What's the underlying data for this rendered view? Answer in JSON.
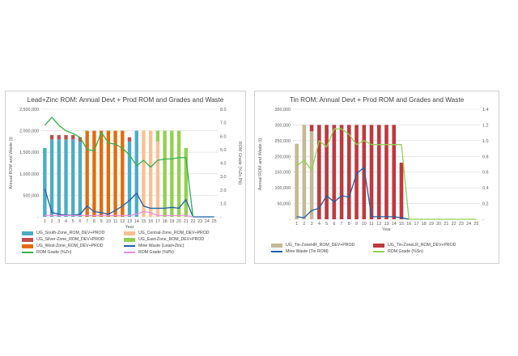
{
  "chart_data": [
    {
      "type": "bar",
      "title": "Lead+Zinc ROM: Annual Devt + Prod ROM and Grades and Waste",
      "xlabel": "Year",
      "ylabel": "Annual ROM and Waste (t)",
      "y2label": "ROM Grade (%Zn,Pb)",
      "ylim": [
        0,
        2500000
      ],
      "y2lim": [
        0,
        8
      ],
      "yticks": [
        "-",
        "500,000",
        "1,000,000",
        "1,500,000",
        "2,000,000",
        "2,500,000"
      ],
      "y2ticks": [
        "-",
        "1.0",
        "2.0",
        "3.0",
        "4.0",
        "5.0",
        "6.0",
        "7.0",
        "8.0"
      ],
      "categories": [
        "1",
        "2",
        "3",
        "4",
        "5",
        "6",
        "7",
        "8",
        "9",
        "10",
        "11",
        "12",
        "13",
        "14",
        "15",
        "16",
        "17",
        "18",
        "19",
        "20",
        "21",
        "22",
        "23",
        "24",
        "25"
      ],
      "grid": true,
      "legend_position": "bottom",
      "bar_series": [
        {
          "name": "UG_South-Zone_ROM_DEV+PROD",
          "color": "#4bacc6",
          "values": [
            1600000,
            1800000,
            1800000,
            1800000,
            1800000,
            1750000,
            0,
            0,
            0,
            0,
            0,
            0,
            1750000,
            2000000,
            0,
            0,
            0,
            0,
            0,
            0,
            0,
            0,
            0,
            0,
            0
          ]
        },
        {
          "name": "UG_Central-Zone_ROM_DEV+PROD",
          "color": "#fac090",
          "values": [
            0,
            0,
            0,
            0,
            0,
            0,
            0,
            0,
            0,
            0,
            0,
            0,
            0,
            0,
            2000000,
            2000000,
            1750000,
            0,
            0,
            0,
            0,
            0,
            0,
            0,
            0
          ]
        },
        {
          "name": "UG_Silver-Zone_ROM_DEV+PROD",
          "color": "#c0504d",
          "values": [
            0,
            100000,
            100000,
            100000,
            100000,
            100000,
            0,
            0,
            0,
            0,
            0,
            0,
            100000,
            0,
            0,
            0,
            0,
            0,
            0,
            0,
            0,
            0,
            0,
            0,
            0
          ]
        },
        {
          "name": "UG_East-Zone_ROM_DEV+PROD",
          "color": "#92d050",
          "values": [
            0,
            0,
            0,
            0,
            0,
            0,
            0,
            0,
            0,
            0,
            0,
            0,
            0,
            0,
            0,
            0,
            250000,
            2000000,
            2000000,
            2000000,
            1600000,
            0,
            0,
            0,
            0
          ]
        },
        {
          "name": "UG_West-Zone_ROM_DEV+PROD",
          "color": "#e46c0a",
          "values": [
            0,
            0,
            0,
            0,
            0,
            0,
            2000000,
            2000000,
            2000000,
            2000000,
            2000000,
            2000000,
            0,
            0,
            0,
            0,
            0,
            0,
            0,
            0,
            0,
            0,
            0,
            0,
            0
          ]
        }
      ],
      "line_series": [
        {
          "name": "Mine Waste (Lead+Zinc)",
          "color": "#1f5fa8",
          "axis": "left",
          "values": [
            650000,
            100000,
            60000,
            40000,
            40000,
            60000,
            250000,
            120000,
            100000,
            60000,
            150000,
            250000,
            380000,
            550000,
            250000,
            200000,
            200000,
            200000,
            220000,
            200000,
            400000,
            0,
            0,
            0,
            0
          ]
        },
        {
          "name": "ROM Grade (%Zn)",
          "color": "#2fb34a",
          "axis": "right",
          "values": [
            6.8,
            7.4,
            6.8,
            6.4,
            6.2,
            5.9,
            5.0,
            4.9,
            6.3,
            5.5,
            5.4,
            5.1,
            4.6,
            3.8,
            4.2,
            3.7,
            4.2,
            4.3,
            4.3,
            4.4,
            4.4,
            0,
            null,
            null,
            null
          ]
        },
        {
          "name": "ROM Grade (%Pb)",
          "color": "#f08ee0",
          "axis": "right",
          "values": [
            0.1,
            0.1,
            0.1,
            0.1,
            0.1,
            0.1,
            0.1,
            0.1,
            0.1,
            0.1,
            0.1,
            0.1,
            0.1,
            0.2,
            0.4,
            0.3,
            0.1,
            0.1,
            0.1,
            0.1,
            0.1,
            0,
            null,
            null,
            null
          ]
        }
      ]
    },
    {
      "type": "bar",
      "title": "Tin ROM: Annual Devt + Prod ROM and Grades and Waste",
      "xlabel": "Year",
      "ylabel": "Annual ROM and Waste (t)",
      "y2label": "ROM Grade (%Sn)",
      "ylim": [
        0,
        350000
      ],
      "y2lim": [
        0,
        1.4
      ],
      "yticks": [
        "-",
        "50,000",
        "100,000",
        "150,000",
        "200,000",
        "250,000",
        "300,000",
        "350,000"
      ],
      "y2ticks": [
        "-",
        "0.2",
        "0.4",
        "0.6",
        "0.8",
        "1.0",
        "1.2",
        "1.4"
      ],
      "categories": [
        "1",
        "2",
        "3",
        "4",
        "5",
        "6",
        "7",
        "8",
        "9",
        "10",
        "11",
        "12",
        "13",
        "14",
        "15",
        "16",
        "17",
        "18",
        "19",
        "20",
        "21",
        "22",
        "23",
        "24",
        "25"
      ],
      "grid": true,
      "legend_position": "bottom",
      "bar_series": [
        {
          "name": "UG_Tin-ZoneHR_ROM_DEV+PROD",
          "color": "#c4b896",
          "values": [
            240000,
            300000,
            280000,
            0,
            0,
            0,
            0,
            0,
            0,
            0,
            0,
            0,
            0,
            0,
            0,
            0,
            0,
            0,
            0,
            0,
            0,
            0,
            0,
            0,
            0
          ]
        },
        {
          "name": "UG_Tin-ZoneLR_ROM_DEV+PROD",
          "color": "#c0383e",
          "values": [
            0,
            0,
            20000,
            300000,
            300000,
            300000,
            300000,
            300000,
            300000,
            300000,
            300000,
            300000,
            300000,
            300000,
            180000,
            0,
            0,
            0,
            0,
            0,
            0,
            0,
            0,
            0,
            0
          ]
        }
      ],
      "line_series": [
        {
          "name": "Mine Waste (Tin ROM)",
          "color": "#1f5fa8",
          "axis": "left",
          "values": [
            8000,
            5000,
            28000,
            35000,
            75000,
            55000,
            75000,
            70000,
            145000,
            165000,
            8000,
            8000,
            8000,
            8000,
            5000,
            0,
            null,
            null,
            null,
            null,
            null,
            null,
            null,
            null,
            null
          ]
        },
        {
          "name": "ROM Grade (%Sn)",
          "color": "#92d050",
          "axis": "right",
          "values": [
            0.68,
            0.75,
            0.62,
            1.0,
            0.92,
            1.15,
            1.15,
            1.08,
            0.95,
            1.0,
            0.95,
            0.95,
            0.95,
            0.95,
            0.95,
            0,
            0,
            0,
            0,
            0,
            0,
            0,
            0,
            0,
            0
          ]
        }
      ]
    }
  ]
}
